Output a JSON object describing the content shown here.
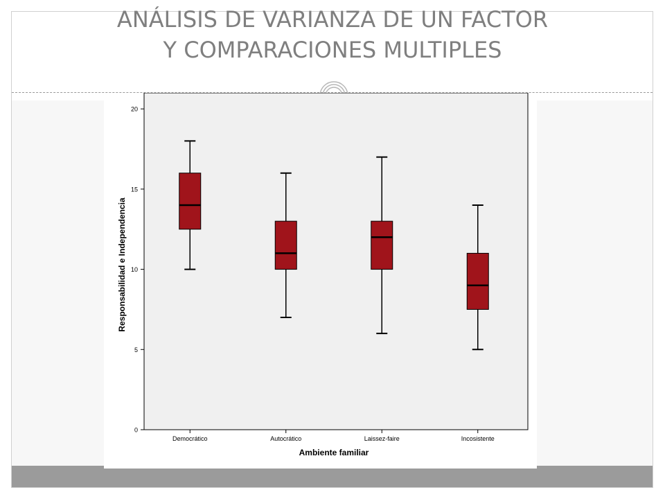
{
  "slide": {
    "title_line1": "ANÁLISIS DE VARIANZA DE UN FACTOR",
    "title_line2": "Y COMPARACIONES MULTIPLES",
    "colors": {
      "title": "#7f7f7f",
      "footer": "#9b9b9b",
      "content_bg": "#f7f7f7"
    }
  },
  "chart_data": {
    "type": "boxplot",
    "title": "",
    "xlabel": "Ambiente familiar",
    "ylabel": "Responsabilidad e Independencia",
    "ylim": [
      0,
      21
    ],
    "yticks": [
      0,
      5,
      10,
      15,
      20
    ],
    "grid": false,
    "categories": [
      "Democrático",
      "Autocrático",
      "Laissez-faire",
      "Incosistente"
    ],
    "boxes": [
      {
        "min": 10,
        "q1": 12.5,
        "median": 14,
        "q3": 16,
        "max": 18
      },
      {
        "min": 7,
        "q1": 10,
        "median": 11,
        "q3": 13,
        "max": 16
      },
      {
        "min": 6,
        "q1": 10,
        "median": 12,
        "q3": 13,
        "max": 17
      },
      {
        "min": 5,
        "q1": 7.5,
        "median": 9,
        "q3": 11,
        "max": 14
      }
    ],
    "colors": {
      "box_fill": "#a0141b",
      "plot_bg": "#f0f0f0",
      "line": "#000000"
    }
  }
}
